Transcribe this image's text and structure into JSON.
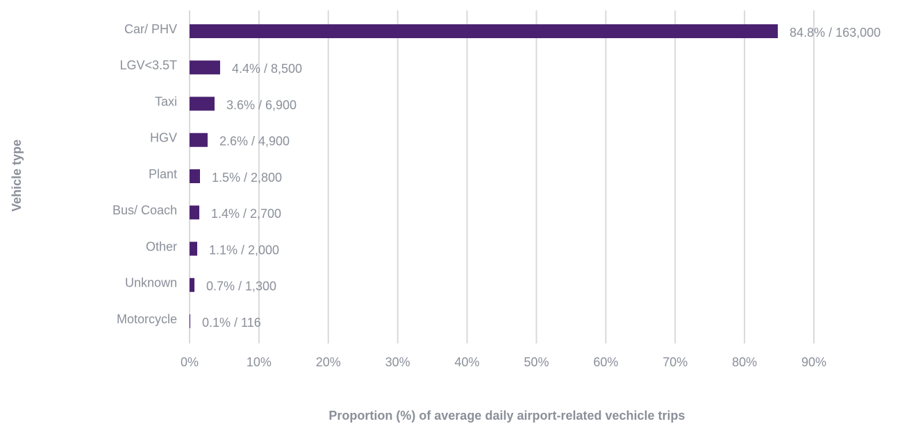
{
  "chart_data": {
    "type": "barh",
    "xlabel": "Proportion (%) of average daily airport-related vechicle trips",
    "ylabel": "Vehicle type",
    "categories": [
      "Car/ PHV",
      "LGV<3.5T",
      "Taxi",
      "HGV",
      "Plant",
      "Bus/ Coach",
      "Other",
      "Unknown",
      "Motorcycle"
    ],
    "values": [
      84.8,
      4.4,
      3.6,
      2.6,
      1.5,
      1.4,
      1.1,
      0.7,
      0.1
    ],
    "value_labels": [
      "84.8% / 163,000",
      "4.4% / 8,500",
      "3.6% / 6,900",
      "2.6% / 4,900",
      "1.5% / 2,800",
      "1.4% / 2,700",
      "1.1% / 2,000",
      "0.7% / 1,300",
      "0.1% / 116"
    ],
    "color": "#4a2170",
    "xlim": [
      0,
      90
    ],
    "xticks": [
      {
        "value": 0,
        "label": "0%"
      },
      {
        "value": 10,
        "label": "10%"
      },
      {
        "value": 20,
        "label": "20%"
      },
      {
        "value": 30,
        "label": "30%"
      },
      {
        "value": 40,
        "label": "40%"
      },
      {
        "value": 50,
        "label": "50%"
      },
      {
        "value": 60,
        "label": "60%"
      },
      {
        "value": 70,
        "label": "70%"
      },
      {
        "value": 80,
        "label": "80%"
      },
      {
        "value": 90,
        "label": "90%"
      }
    ],
    "grid": true
  }
}
